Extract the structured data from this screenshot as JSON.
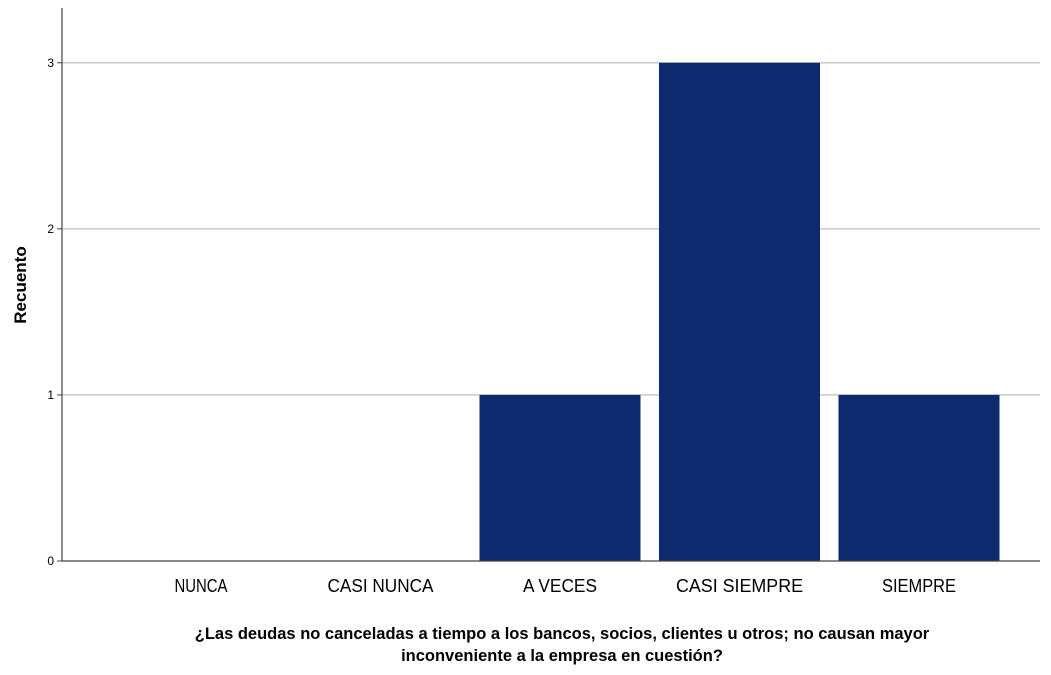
{
  "chart_data": {
    "type": "bar",
    "categories": [
      "NUNCA",
      "CASI NUNCA",
      "A VECES",
      "CASI SIEMPRE",
      "SIEMPRE"
    ],
    "values": [
      0,
      0,
      1,
      3,
      1
    ],
    "xlabel_lines": [
      "¿Las deudas no canceladas a tiempo a los bancos, socios, clientes u otros; no causan mayor",
      "inconveniente a la empresa en cuestión?"
    ],
    "ylabel": "Recuento",
    "ylim": [
      0,
      3.33
    ],
    "yticks": [
      0,
      1,
      2,
      3
    ],
    "grid": true,
    "bar_color": "#0e2a6e",
    "grid_color": "#c8c8c8",
    "axis_color": "#404040",
    "legend": "none"
  }
}
